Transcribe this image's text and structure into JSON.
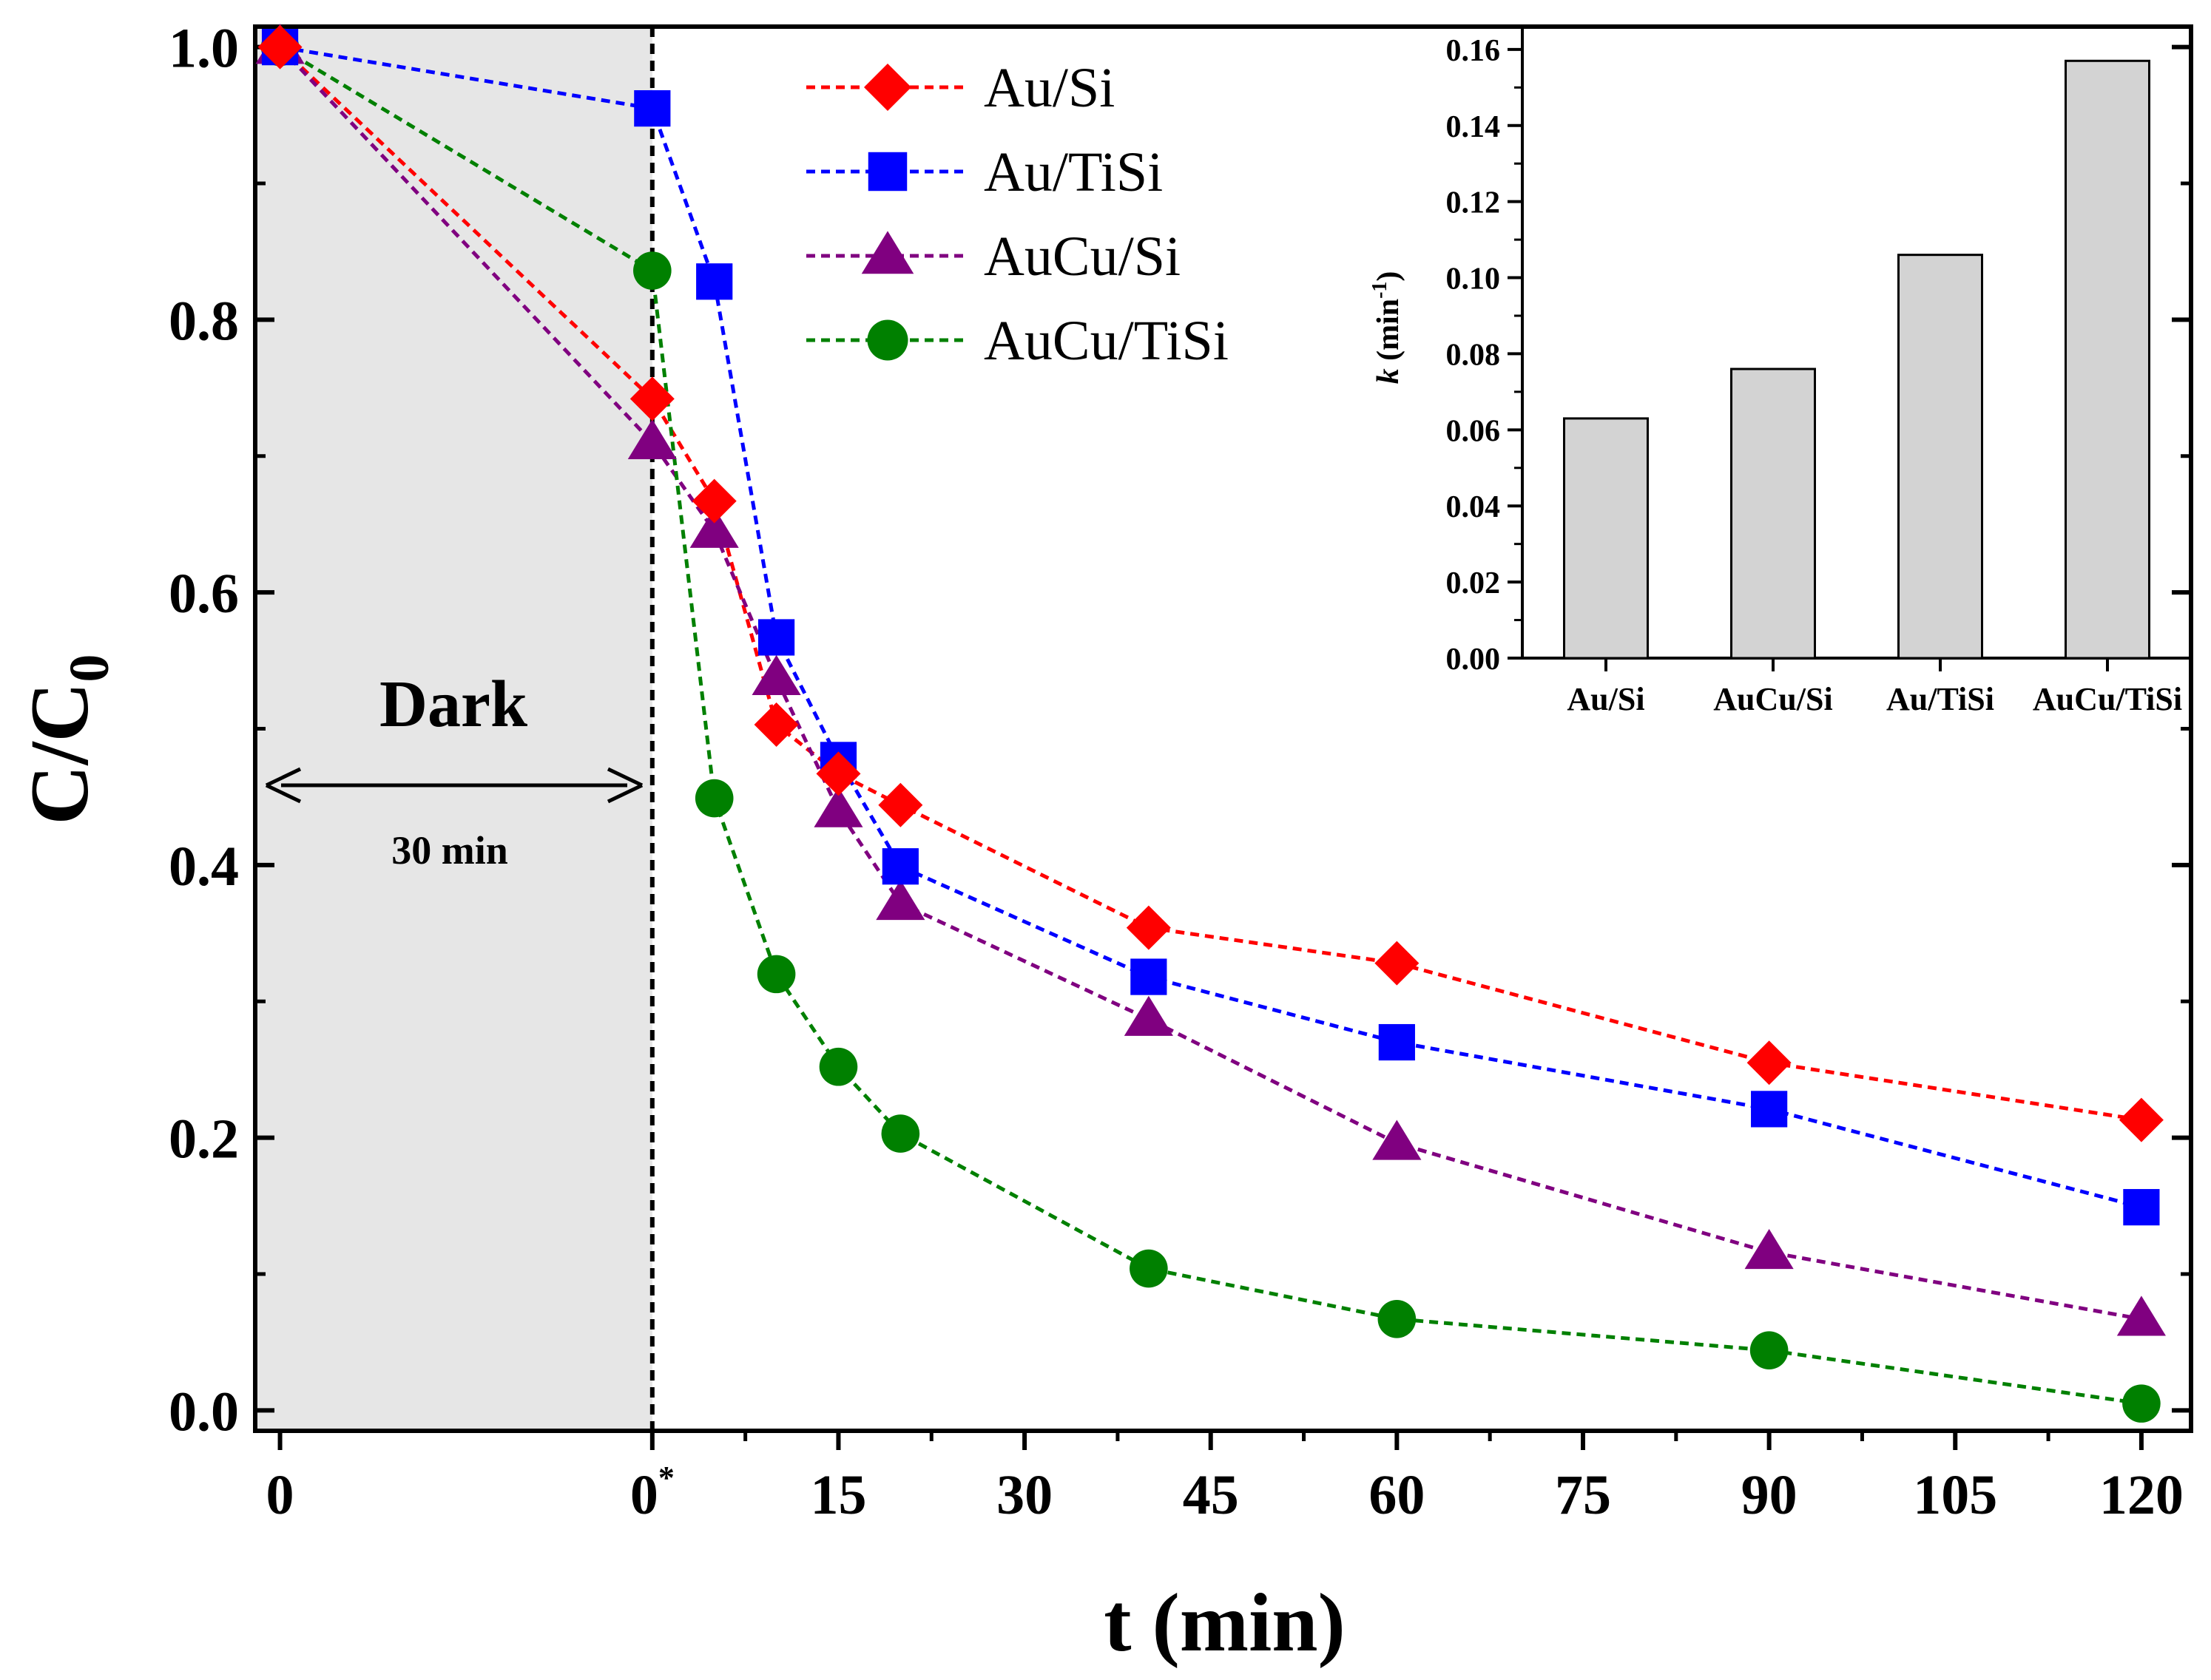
{
  "chart_data": {
    "main": {
      "type": "line",
      "xlabel": "t (min)",
      "ylabel": "C/C",
      "ylabel_sub": "0",
      "x_tick_labels": [
        {
          "x": -30,
          "label": "0",
          "sup": ""
        },
        {
          "x": 0,
          "label": "0",
          "sup": "*"
        },
        {
          "x": 15,
          "label": "15",
          "sup": ""
        },
        {
          "x": 30,
          "label": "30",
          "sup": ""
        },
        {
          "x": 45,
          "label": "45",
          "sup": ""
        },
        {
          "x": 60,
          "label": "60",
          "sup": ""
        },
        {
          "x": 75,
          "label": "75",
          "sup": ""
        },
        {
          "x": 90,
          "label": "90",
          "sup": ""
        },
        {
          "x": 105,
          "label": "105",
          "sup": ""
        },
        {
          "x": 120,
          "label": "120",
          "sup": ""
        }
      ],
      "xlim": [
        -32,
        124
      ],
      "ylim": [
        -0.015,
        1.015
      ],
      "y_ticks": [
        "0.0",
        "0.2",
        "0.4",
        "0.6",
        "0.8",
        "1.0"
      ],
      "dark_region": {
        "from": -32,
        "to": 0,
        "label": "Dark",
        "duration_label": "30 min",
        "color": "#e6e6e6"
      },
      "x": [
        -30,
        0,
        5,
        10,
        15,
        20,
        40,
        60,
        90,
        120
      ],
      "series": [
        {
          "name": "Au/Si",
          "marker": "diamond",
          "color": "#ff0000",
          "values": [
            1.0,
            0.742,
            0.667,
            0.503,
            0.467,
            0.444,
            0.354,
            0.328,
            0.255,
            0.213
          ]
        },
        {
          "name": "Au/TiSi",
          "marker": "square",
          "color": "#0000ff",
          "values": [
            1.0,
            0.955,
            0.828,
            0.567,
            0.477,
            0.399,
            0.318,
            0.27,
            0.221,
            0.149
          ]
        },
        {
          "name": "AuCu/Si",
          "marker": "triangle",
          "color": "#800080",
          "values": [
            1.0,
            0.71,
            0.645,
            0.537,
            0.44,
            0.372,
            0.287,
            0.196,
            0.116,
            0.067
          ]
        },
        {
          "name": "AuCu/TiSi",
          "marker": "circle",
          "color": "#008000",
          "values": [
            1.0,
            0.836,
            0.449,
            0.32,
            0.252,
            0.203,
            0.104,
            0.067,
            0.044,
            0.005
          ]
        }
      ]
    },
    "inset": {
      "type": "bar",
      "categories": [
        "Au/Si",
        "AuCu/Si",
        "Au/TiSi",
        "AuCu/TiSi"
      ],
      "values": [
        0.063,
        0.076,
        0.106,
        0.157
      ],
      "ylabel_k": "k",
      "ylabel_rest": " (min",
      "ylabel_sup": "-1",
      "ylabel_close": ")",
      "ylim": [
        0.0,
        0.16
      ],
      "y_ticks": [
        "0.00",
        "0.02",
        "0.04",
        "0.06",
        "0.08",
        "0.10",
        "0.12",
        "0.14",
        "0.16"
      ],
      "bar_color": "#d3d3d3"
    }
  }
}
